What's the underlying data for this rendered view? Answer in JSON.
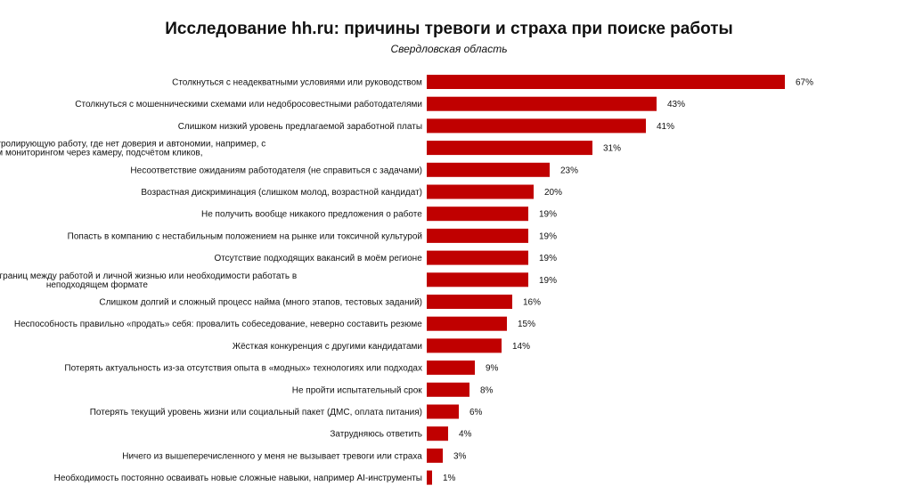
{
  "chart_data": {
    "type": "bar",
    "orientation": "horizontal",
    "title": "Исследование hh.ru: причины тревоги и страха при поиске работы",
    "subtitle": "Свердловская область",
    "bar_color": "#c00000",
    "categories": [
      [
        "Столкнуться с неадекватными условиями или руководством"
      ],
      [
        "Столкнуться с мошенническими схемами или недобросовестными работодателями"
      ],
      [
        "Слишком низкий уровень предлагаемой заработной платы"
      ],
      [
        "Прийти на негибкую и контролирующую работу, где нет доверия и автономии, например, с",
        "постоянным мониторингом через камеру, подсчётом кликов,"
      ],
      [
        "Несоответствие ожиданиям работодателя (не справиться с задачами)"
      ],
      [
        "Возрастная дискриминация (слишком молод, возрастной кандидат)"
      ],
      [
        "Не получить вообще никакого предложения о работе"
      ],
      [
        "Попасть в компанию с нестабильным положением на рынке или токсичной культурой"
      ],
      [
        "Отсутствие подходящих вакансий в моём регионе"
      ],
      [
        "Тревога из-за размытых границ между работой и личной жизнью или необходимости работать в",
        "неподходящем формате"
      ],
      [
        "Слишком долгий и сложный процесс найма (много этапов, тестовых заданий)"
      ],
      [
        "Неспособность правильно «продать» себя: провалить собеседование, неверно составить резюме"
      ],
      [
        "Жёсткая конкуренция с другими кандидатами"
      ],
      [
        "Потерять актуальность из-за отсутствия опыта в «модных» технологиях или подходах"
      ],
      [
        "Не пройти испытательный срок"
      ],
      [
        "Потерять текущий уровень жизни или социальный пакет (ДМС, оплата питания)"
      ],
      [
        "Затрудняюсь ответить"
      ],
      [
        "Ничего из вышеперечисленного у меня не вызывает тревоги или страха"
      ],
      [
        "Необходимость постоянно осваивать новые сложные навыки, например AI-инструменты"
      ]
    ],
    "values": [
      67,
      43,
      41,
      31,
      23,
      20,
      19,
      19,
      19,
      19,
      16,
      15,
      14,
      9,
      8,
      6,
      4,
      3,
      1
    ],
    "value_labels": [
      "67%",
      "43%",
      "41%",
      "31%",
      "23%",
      "20%",
      "19%",
      "19%",
      "19%",
      "19%",
      "16%",
      "15%",
      "14%",
      "9%",
      "8%",
      "6%",
      "4%",
      "3%",
      "1%"
    ],
    "xlim": [
      0,
      67
    ],
    "grid": false
  }
}
